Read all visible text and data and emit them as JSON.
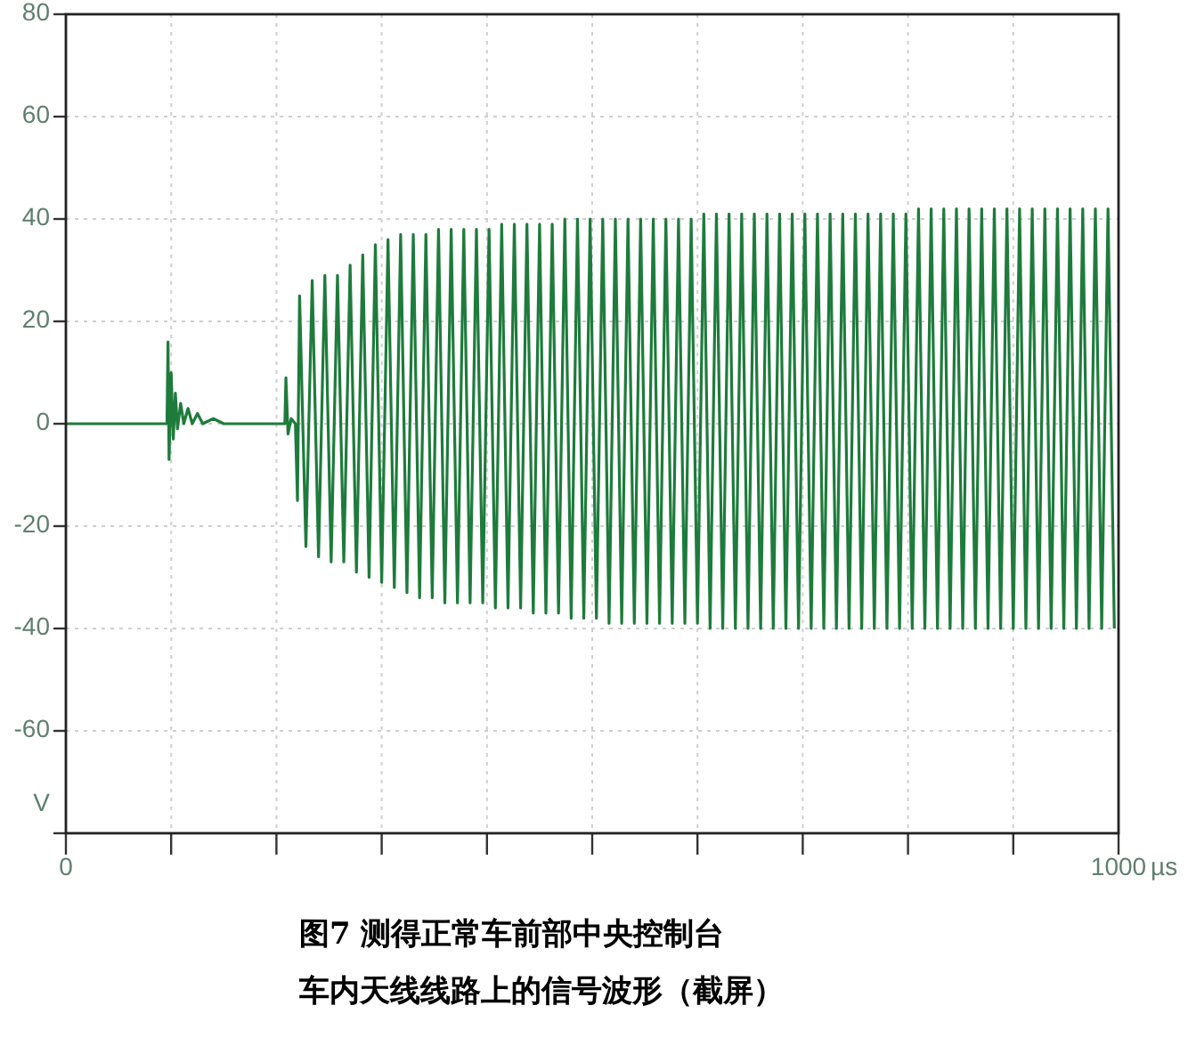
{
  "chart_data": {
    "type": "line",
    "xlabel": "µs",
    "ylabel": "V",
    "annotations": [
      "图7 测得正常车前部中央控制台",
      "车内天线线路上的信号波形（截屏）"
    ],
    "xlim": [
      0,
      1000
    ],
    "ylim": [
      -80,
      80
    ],
    "xticks": [
      {
        "value": 0,
        "label": "0"
      },
      {
        "value": 100,
        "label": null
      },
      {
        "value": 200,
        "label": null
      },
      {
        "value": 300,
        "label": null
      },
      {
        "value": 400,
        "label": null
      },
      {
        "value": 500,
        "label": null
      },
      {
        "value": 600,
        "label": null
      },
      {
        "value": 700,
        "label": null
      },
      {
        "value": 800,
        "label": null
      },
      {
        "value": 900,
        "label": null
      },
      {
        "value": 1000,
        "label": "1000"
      }
    ],
    "yticks": [
      {
        "value": -80,
        "label": null
      },
      -60,
      -40,
      -20,
      0,
      20,
      40,
      60,
      80
    ],
    "grid": true,
    "line_style": "solid",
    "series": [
      {
        "color": "#1e7b3c",
        "x": [
          0,
          96,
          97,
          98,
          100,
          102,
          104,
          106,
          109,
          112,
          116,
          120,
          125,
          130,
          140,
          150,
          208,
          209,
          211,
          214,
          218,
          220,
          222,
          228,
          234,
          240,
          246,
          252,
          258,
          264,
          270,
          276,
          282,
          288,
          294,
          300,
          306,
          312,
          318,
          324,
          330,
          336,
          342,
          348,
          354,
          360,
          366,
          372,
          378,
          384,
          390,
          396,
          402,
          408,
          414,
          420,
          426,
          432,
          438,
          444,
          450,
          456,
          462,
          468,
          474,
          480,
          486,
          492,
          498,
          504,
          510,
          516,
          522,
          528,
          534,
          540,
          546,
          552,
          558,
          564,
          570,
          576,
          582,
          588,
          594,
          600,
          606,
          612,
          618,
          624,
          630,
          636,
          642,
          648,
          654,
          660,
          666,
          672,
          678,
          684,
          690,
          696,
          702,
          708,
          714,
          720,
          726,
          732,
          738,
          744,
          750,
          756,
          762,
          768,
          774,
          780,
          786,
          792,
          798,
          804,
          810,
          816,
          822,
          828,
          834,
          840,
          846,
          852,
          858,
          864,
          870,
          876,
          882,
          888,
          894,
          900,
          906,
          912,
          918,
          924,
          930,
          936,
          942,
          948,
          954,
          960,
          966,
          972,
          978,
          984,
          990,
          996
        ],
        "values": [
          0,
          0,
          16,
          -7,
          10,
          -3,
          6,
          -1,
          4,
          0,
          3,
          0,
          2,
          0,
          1,
          0,
          0,
          9,
          -2,
          1,
          0,
          -15,
          25,
          -24,
          28,
          -26,
          29,
          -27,
          29,
          -27,
          31,
          -29,
          33,
          -30,
          35,
          -31,
          36,
          -32,
          37,
          -33,
          37,
          -34,
          37,
          -34,
          38,
          -35,
          38,
          -35,
          38,
          -35,
          38,
          -35,
          38,
          -36,
          39,
          -36,
          39,
          -36,
          39,
          -37,
          39,
          -37,
          39,
          -37,
          40,
          -38,
          40,
          -38,
          40,
          -38,
          40,
          -39,
          40,
          -39,
          40,
          -39,
          40,
          -39,
          40,
          -39,
          40,
          -39,
          40,
          -39,
          40,
          -39,
          41,
          -40,
          41,
          -40,
          41,
          -40,
          41,
          -40,
          41,
          -40,
          41,
          -40,
          41,
          -40,
          41,
          -40,
          41,
          -40,
          41,
          -40,
          41,
          -40,
          41,
          -40,
          41,
          -40,
          41,
          -40,
          41,
          -40,
          41,
          -40,
          41,
          -40,
          42,
          -40,
          42,
          -40,
          42,
          -40,
          42,
          -40,
          42,
          -40,
          42,
          -40,
          42,
          -40,
          42,
          -40,
          42,
          -40,
          42,
          -40,
          42,
          -40,
          42,
          -40,
          42,
          -40,
          42,
          -40,
          42,
          -40,
          42,
          -40
        ]
      }
    ]
  }
}
